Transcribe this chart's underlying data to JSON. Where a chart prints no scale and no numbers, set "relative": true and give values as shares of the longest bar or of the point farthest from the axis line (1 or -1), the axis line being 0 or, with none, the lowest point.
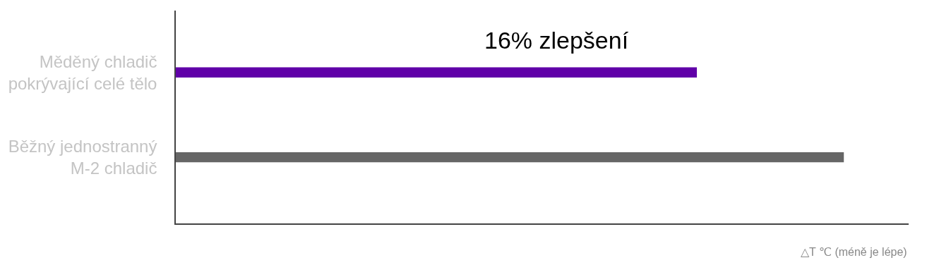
{
  "chart_data": {
    "type": "bar",
    "orientation": "horizontal",
    "relative": true,
    "categories": [
      "Měděný chladič\npokrývající celé tělo",
      "Běžný jednostranný\nM-2 chladič"
    ],
    "values": [
      0.78,
      1
    ],
    "colors": [
      "#6000a8",
      "#666666"
    ],
    "xlabel": "△T ℃ (méně je lépe)",
    "annotations": [
      "16% zlepšení"
    ],
    "legend": false
  }
}
